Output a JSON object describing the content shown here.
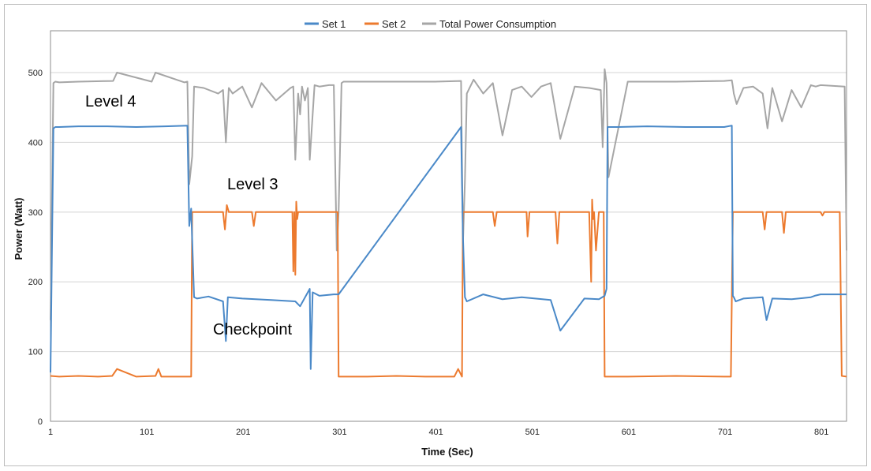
{
  "chart_data": {
    "type": "line",
    "title": "",
    "xlabel": "Time (Sec)",
    "ylabel": "Power (Watt)",
    "xlim": [
      1,
      827
    ],
    "ylim": [
      0,
      560
    ],
    "x_ticks": [
      1,
      101,
      201,
      301,
      401,
      501,
      601,
      701,
      801
    ],
    "y_ticks": [
      0,
      100,
      200,
      300,
      400,
      500
    ],
    "grid": "horizontal",
    "legend_position": "top-center",
    "colors": {
      "set1": "#4a89c8",
      "set2": "#ec7a2e",
      "total": "#a6a6a6"
    },
    "series": [
      {
        "name": "Set 1",
        "color": "#4a89c8",
        "x": [
          1,
          4,
          6,
          10,
          30,
          60,
          90,
          120,
          143,
          145,
          147,
          150,
          153,
          165,
          180,
          183,
          185,
          200,
          230,
          255,
          260,
          270,
          271,
          273,
          280,
          295,
          298,
          300,
          427,
          428,
          429,
          431,
          433,
          450,
          470,
          490,
          520,
          530,
          555,
          570,
          576,
          578,
          579,
          590,
          620,
          660,
          700,
          708,
          709,
          710,
          712,
          720,
          740,
          744,
          750,
          770,
          790,
          794,
          800,
          827
        ],
        "values": [
          70,
          420,
          422,
          422,
          423,
          423,
          422,
          423,
          424,
          280,
          305,
          178,
          176,
          179,
          172,
          115,
          178,
          176,
          174,
          172,
          165,
          190,
          75,
          185,
          180,
          182,
          182,
          182,
          422,
          340,
          265,
          178,
          172,
          182,
          175,
          178,
          174,
          130,
          176,
          175,
          180,
          190,
          422,
          422,
          423,
          422,
          422,
          424,
          180,
          178,
          172,
          176,
          178,
          145,
          176,
          175,
          178,
          180,
          182,
          182
        ]
      },
      {
        "name": "Set 2",
        "color": "#ec7a2e",
        "x": [
          1,
          10,
          30,
          50,
          65,
          70,
          90,
          110,
          113,
          116,
          140,
          147,
          148,
          150,
          180,
          182,
          184,
          186,
          200,
          210,
          212,
          214,
          240,
          252,
          253,
          254,
          255,
          256,
          257,
          258,
          260,
          275,
          295,
          298,
          299,
          300,
          330,
          360,
          390,
          420,
          424,
          428,
          429,
          450,
          460,
          462,
          464,
          495,
          496,
          498,
          525,
          527,
          529,
          560,
          562,
          563,
          564,
          565,
          567,
          570,
          575,
          576,
          577,
          600,
          650,
          700,
          707,
          709,
          710,
          740,
          742,
          744,
          746,
          760,
          762,
          764,
          767,
          770,
          800,
          802,
          804,
          820,
          822,
          827
        ],
        "values": [
          65,
          64,
          65,
          64,
          65,
          75,
          64,
          65,
          75,
          64,
          64,
          64,
          300,
          300,
          300,
          275,
          310,
          300,
          300,
          300,
          280,
          300,
          300,
          300,
          215,
          300,
          210,
          315,
          290,
          300,
          300,
          300,
          300,
          300,
          300,
          64,
          64,
          65,
          64,
          64,
          75,
          64,
          300,
          300,
          300,
          280,
          300,
          300,
          265,
          300,
          300,
          255,
          300,
          300,
          200,
          318,
          290,
          300,
          245,
          300,
          300,
          64,
          64,
          64,
          65,
          64,
          64,
          300,
          300,
          300,
          275,
          300,
          300,
          300,
          270,
          300,
          300,
          300,
          300,
          295,
          300,
          300,
          65,
          64
        ]
      },
      {
        "name": "Total Power Consumption",
        "color": "#a6a6a6",
        "x": [
          1,
          4,
          6,
          10,
          30,
          66,
          70,
          106,
          110,
          140,
          143,
          145,
          148,
          150,
          160,
          175,
          180,
          183,
          186,
          190,
          200,
          210,
          220,
          235,
          250,
          253,
          255,
          258,
          260,
          262,
          265,
          268,
          270,
          275,
          280,
          290,
          295,
          298,
          300,
          303,
          305,
          320,
          350,
          400,
          427,
          429,
          431,
          433,
          440,
          450,
          460,
          470,
          480,
          490,
          500,
          510,
          520,
          530,
          545,
          560,
          572,
          574,
          576,
          578,
          580,
          600,
          650,
          700,
          708,
          709,
          710,
          713,
          720,
          730,
          740,
          745,
          750,
          760,
          770,
          780,
          790,
          795,
          800,
          825,
          827
        ],
        "values": [
          145,
          485,
          487,
          486,
          487,
          488,
          500,
          487,
          500,
          486,
          487,
          340,
          380,
          480,
          478,
          470,
          475,
          400,
          478,
          470,
          480,
          450,
          485,
          460,
          478,
          480,
          375,
          470,
          440,
          480,
          460,
          478,
          375,
          482,
          480,
          482,
          482,
          245,
          300,
          485,
          487,
          487,
          487,
          487,
          488,
          255,
          345,
          470,
          490,
          470,
          485,
          410,
          475,
          480,
          465,
          480,
          485,
          405,
          480,
          478,
          475,
          393,
          505,
          485,
          350,
          487,
          487,
          488,
          489,
          480,
          470,
          455,
          478,
          480,
          470,
          420,
          478,
          430,
          475,
          450,
          482,
          480,
          482,
          480,
          245
        ]
      }
    ]
  },
  "annotations": {
    "level4": "Level 4",
    "level3": "Level 3",
    "checkpoint": "Checkpoint"
  }
}
